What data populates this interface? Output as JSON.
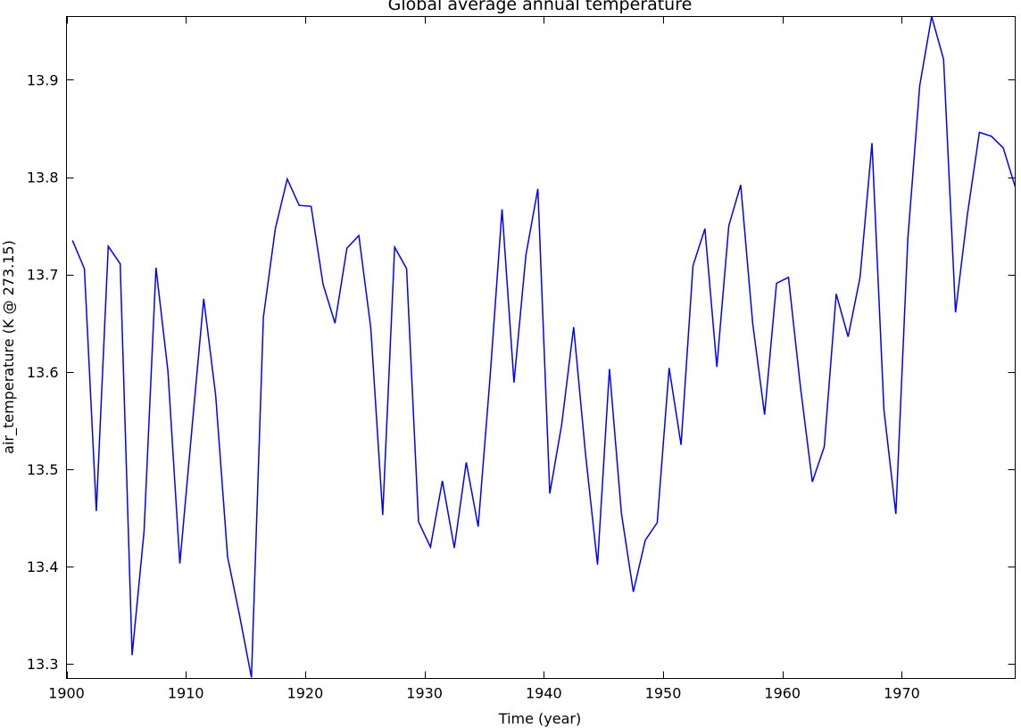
{
  "chart_data": {
    "type": "line",
    "title": "Global average annual temperature",
    "xlabel": "Time (year)",
    "ylabel": "air_temperature (K @ 273.15)",
    "xlim": [
      1900,
      1979.5
    ],
    "ylim": [
      13.285,
      13.965
    ],
    "x_ticks": [
      1900,
      1910,
      1920,
      1930,
      1940,
      1950,
      1960,
      1970
    ],
    "y_ticks": [
      13.3,
      13.4,
      13.5,
      13.6,
      13.7,
      13.8,
      13.9
    ],
    "grid": false,
    "series": [
      {
        "line_color": "#0000ff",
        "x": [
          1900.5,
          1901.5,
          1902.5,
          1903.5,
          1904.5,
          1905.5,
          1906.5,
          1907.5,
          1908.5,
          1909.5,
          1910.5,
          1911.5,
          1912.5,
          1913.5,
          1914.5,
          1915.5,
          1916.5,
          1917.5,
          1918.5,
          1919.5,
          1920.5,
          1921.5,
          1922.5,
          1923.5,
          1924.5,
          1925.5,
          1926.5,
          1927.5,
          1928.5,
          1929.5,
          1930.5,
          1931.5,
          1932.5,
          1933.5,
          1934.5,
          1935.5,
          1936.5,
          1937.5,
          1938.5,
          1939.5,
          1940.5,
          1941.5,
          1942.5,
          1943.5,
          1944.5,
          1945.5,
          1946.5,
          1947.5,
          1948.5,
          1949.5,
          1950.5,
          1951.5,
          1952.5,
          1953.5,
          1954.5,
          1955.5,
          1956.5,
          1957.5,
          1958.5,
          1959.5,
          1960.5,
          1961.5,
          1962.5,
          1963.5,
          1964.5,
          1965.5,
          1966.5,
          1967.5,
          1968.5,
          1969.5,
          1970.5,
          1971.5,
          1972.5,
          1973.5,
          1974.5,
          1975.5,
          1976.5,
          1977.5,
          1978.5,
          1979.5
        ],
        "y": [
          13.735,
          13.706,
          13.457,
          13.729,
          13.711,
          13.309,
          13.436,
          13.707,
          13.601,
          13.403,
          13.54,
          13.675,
          13.576,
          13.41,
          13.35,
          13.286,
          13.656,
          13.747,
          13.798,
          13.771,
          13.77,
          13.69,
          13.65,
          13.727,
          13.74,
          13.645,
          13.453,
          13.728,
          13.706,
          13.446,
          13.42,
          13.488,
          13.419,
          13.507,
          13.441,
          13.595,
          13.767,
          13.589,
          13.72,
          13.788,
          13.475,
          13.546,
          13.646,
          13.515,
          13.402,
          13.603,
          13.455,
          13.374,
          13.427,
          13.445,
          13.604,
          13.525,
          13.709,
          13.747,
          13.605,
          13.75,
          13.792,
          13.65,
          13.556,
          13.691,
          13.697,
          13.585,
          13.487,
          13.523,
          13.68,
          13.636,
          13.697,
          13.835,
          13.561,
          13.454,
          13.736,
          13.894,
          13.965,
          13.921,
          13.661,
          13.762,
          13.846,
          13.842,
          13.83,
          13.79
        ]
      }
    ]
  }
}
